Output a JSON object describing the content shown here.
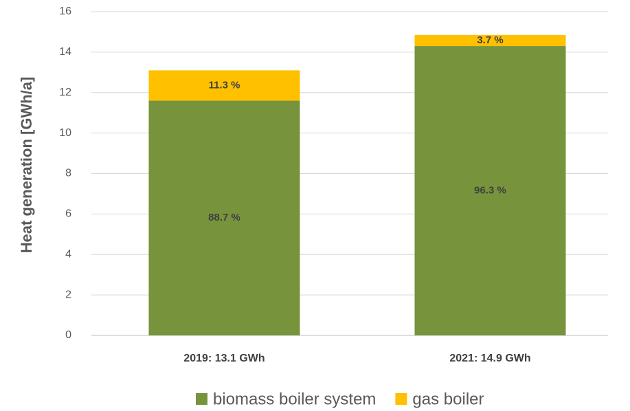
{
  "chart_data": {
    "type": "stacked_bar",
    "y_label": "Heat generation [GWh/a]",
    "categories": [
      "2019: 13.1 GWh",
      "2021: 14.9 GWh"
    ],
    "series": [
      {
        "name": "biomass boiler system",
        "color": "#77933c",
        "values": [
          11.6,
          14.3
        ],
        "value_labels": [
          "88.7 %",
          "96.3 %"
        ]
      },
      {
        "name": "gas boiler",
        "color": "#ffc000",
        "values": [
          1.5,
          0.55
        ],
        "value_labels": [
          "11.3 %",
          "3.7 %"
        ]
      }
    ],
    "ylim": [
      0,
      16
    ],
    "yticks": [
      0,
      2,
      4,
      6,
      8,
      10,
      12,
      14,
      16
    ],
    "grid": true,
    "legend": "bottom"
  }
}
